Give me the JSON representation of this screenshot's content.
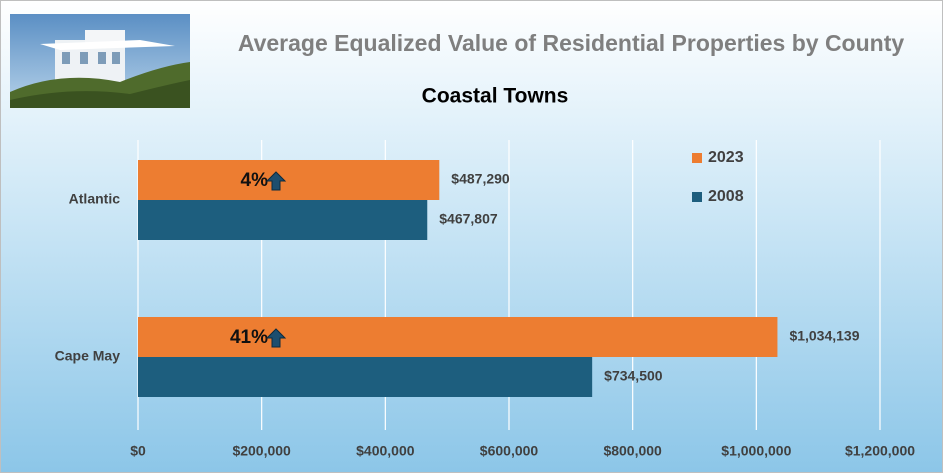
{
  "chart_data": {
    "type": "hbar",
    "title": "Average Equalized Value of Residential Properties by County",
    "subtitle": "Coastal Towns",
    "categories": [
      "Atlantic",
      "Cape May"
    ],
    "series": [
      {
        "name": "2023",
        "color": "#ed7d31",
        "values": [
          487290,
          1034139
        ],
        "value_labels": [
          "$487,290",
          "$1,034,139"
        ]
      },
      {
        "name": "2008",
        "color": "#1d5e7e",
        "values": [
          467807,
          734500
        ],
        "value_labels": [
          "$467,807",
          "$734,500"
        ]
      }
    ],
    "annotations": [
      "4%",
      "41%"
    ],
    "xlim": [
      0,
      1200000
    ],
    "xticks": [
      {
        "value": 0,
        "label": "$0"
      },
      {
        "value": 200000,
        "label": "$200,000"
      },
      {
        "value": 400000,
        "label": "$400,000"
      },
      {
        "value": 600000,
        "label": "$600,000"
      },
      {
        "value": 800000,
        "label": "$800,000"
      },
      {
        "value": 1000000,
        "label": "$1,000,000"
      },
      {
        "value": 1200000,
        "label": "$1,200,000"
      }
    ],
    "grid": true
  }
}
